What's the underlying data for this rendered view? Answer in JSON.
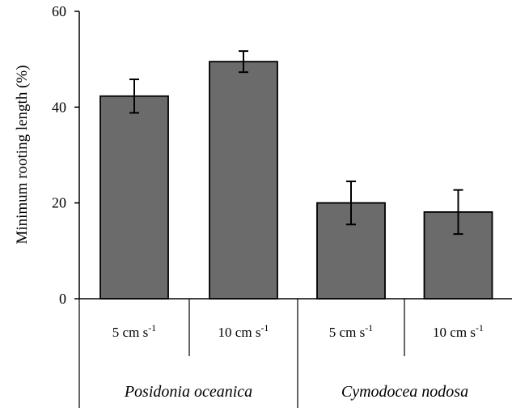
{
  "chart_data": {
    "type": "bar",
    "ylabel": "Minimum rooting length (%)",
    "ylim": [
      0,
      60
    ],
    "yticks": [
      0,
      20,
      40,
      60
    ],
    "grid": false,
    "bar_color": "#6b6b6b",
    "groups": [
      {
        "name": "Posidonia oceanica",
        "bars": [
          {
            "base": "5 cm s",
            "exp": "-1",
            "value": 42.3,
            "error": 3.5
          },
          {
            "base": "10 cm s",
            "exp": "-1",
            "value": 49.5,
            "error": 2.2
          }
        ]
      },
      {
        "name": "Cymodocea nodosa",
        "bars": [
          {
            "base": "5 cm s",
            "exp": "-1",
            "value": 20.0,
            "error": 4.5
          },
          {
            "base": "10 cm s",
            "exp": "-1",
            "value": 18.1,
            "error": 4.6
          }
        ]
      }
    ]
  }
}
